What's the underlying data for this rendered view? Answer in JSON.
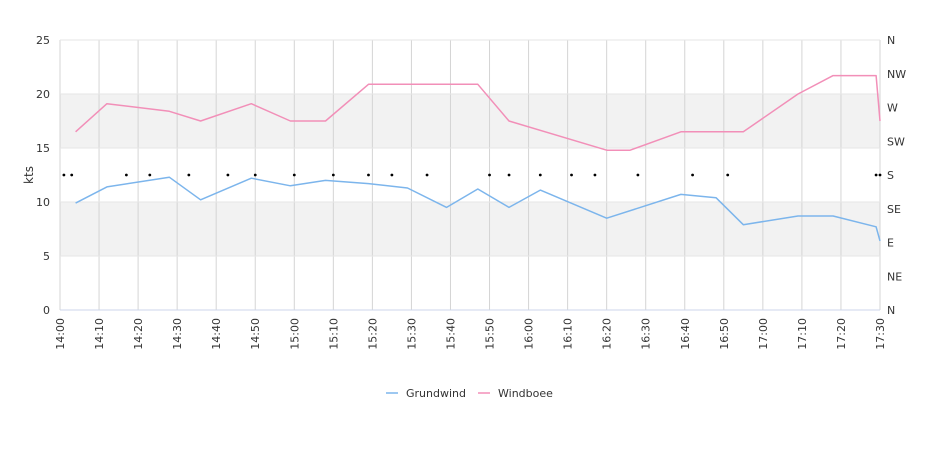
{
  "chart_data": {
    "type": "line",
    "title": "",
    "xlabel": "",
    "ylabel": "kts",
    "ylim": [
      0,
      25
    ],
    "yticks": [
      0,
      5,
      10,
      15,
      20,
      25
    ],
    "x_domain": [
      "14:00",
      "17:30"
    ],
    "xtick_labels": [
      "14:00",
      "14:10",
      "14:20",
      "14:30",
      "14:40",
      "14:50",
      "15:00",
      "15:10",
      "15:20",
      "15:30",
      "15:40",
      "15:50",
      "16:00",
      "16:10",
      "16:20",
      "16:30",
      "16:40",
      "16:50",
      "17:00",
      "17:10",
      "17:20",
      "17:30"
    ],
    "direction_axis": {
      "labels_bottom_to_top": [
        "N",
        "NE",
        "E",
        "SE",
        "S",
        "SW",
        "W",
        "NW",
        "N"
      ]
    },
    "direction_markers": {
      "direction": "S",
      "x": [
        "14:01",
        "14:03",
        "14:17",
        "14:23",
        "14:33",
        "14:43",
        "14:50",
        "15:00",
        "15:10",
        "15:19",
        "15:25",
        "15:34",
        "15:50",
        "15:55",
        "16:03",
        "16:11",
        "16:17",
        "16:28",
        "16:42",
        "16:51",
        "17:29",
        "17:30"
      ]
    },
    "series": [
      {
        "name": "Grundwind",
        "color": "#7cb5ec",
        "x": [
          "14:04",
          "14:12",
          "14:28",
          "14:36",
          "14:49",
          "14:59",
          "15:08",
          "15:19",
          "15:29",
          "15:39",
          "15:47",
          "15:55",
          "16:03",
          "16:20",
          "16:39",
          "16:48",
          "16:55",
          "17:09",
          "17:18",
          "17:29",
          "17:30"
        ],
        "y": [
          9.9,
          11.4,
          12.3,
          10.2,
          12.2,
          11.5,
          12.0,
          11.7,
          11.3,
          9.5,
          11.2,
          9.5,
          11.1,
          8.5,
          10.7,
          10.4,
          7.9,
          8.7,
          8.7,
          7.7,
          6.4
        ]
      },
      {
        "name": "Windboee",
        "color": "#f28fb8",
        "x": [
          "14:04",
          "14:12",
          "14:28",
          "14:36",
          "14:49",
          "14:59",
          "15:08",
          "15:19",
          "15:29",
          "15:39",
          "15:47",
          "15:55",
          "16:20",
          "16:26",
          "16:39",
          "16:48",
          "16:55",
          "17:09",
          "17:18",
          "17:29",
          "17:30"
        ],
        "y": [
          16.5,
          19.1,
          18.4,
          17.5,
          19.1,
          17.5,
          17.5,
          20.9,
          20.9,
          20.9,
          20.9,
          17.5,
          14.8,
          14.8,
          16.5,
          16.5,
          16.5,
          20.0,
          21.7,
          21.7,
          17.5
        ]
      }
    ],
    "bands": [
      [
        5,
        10
      ],
      [
        15,
        20
      ]
    ],
    "grid": true,
    "legend_position": "bottom-center"
  }
}
